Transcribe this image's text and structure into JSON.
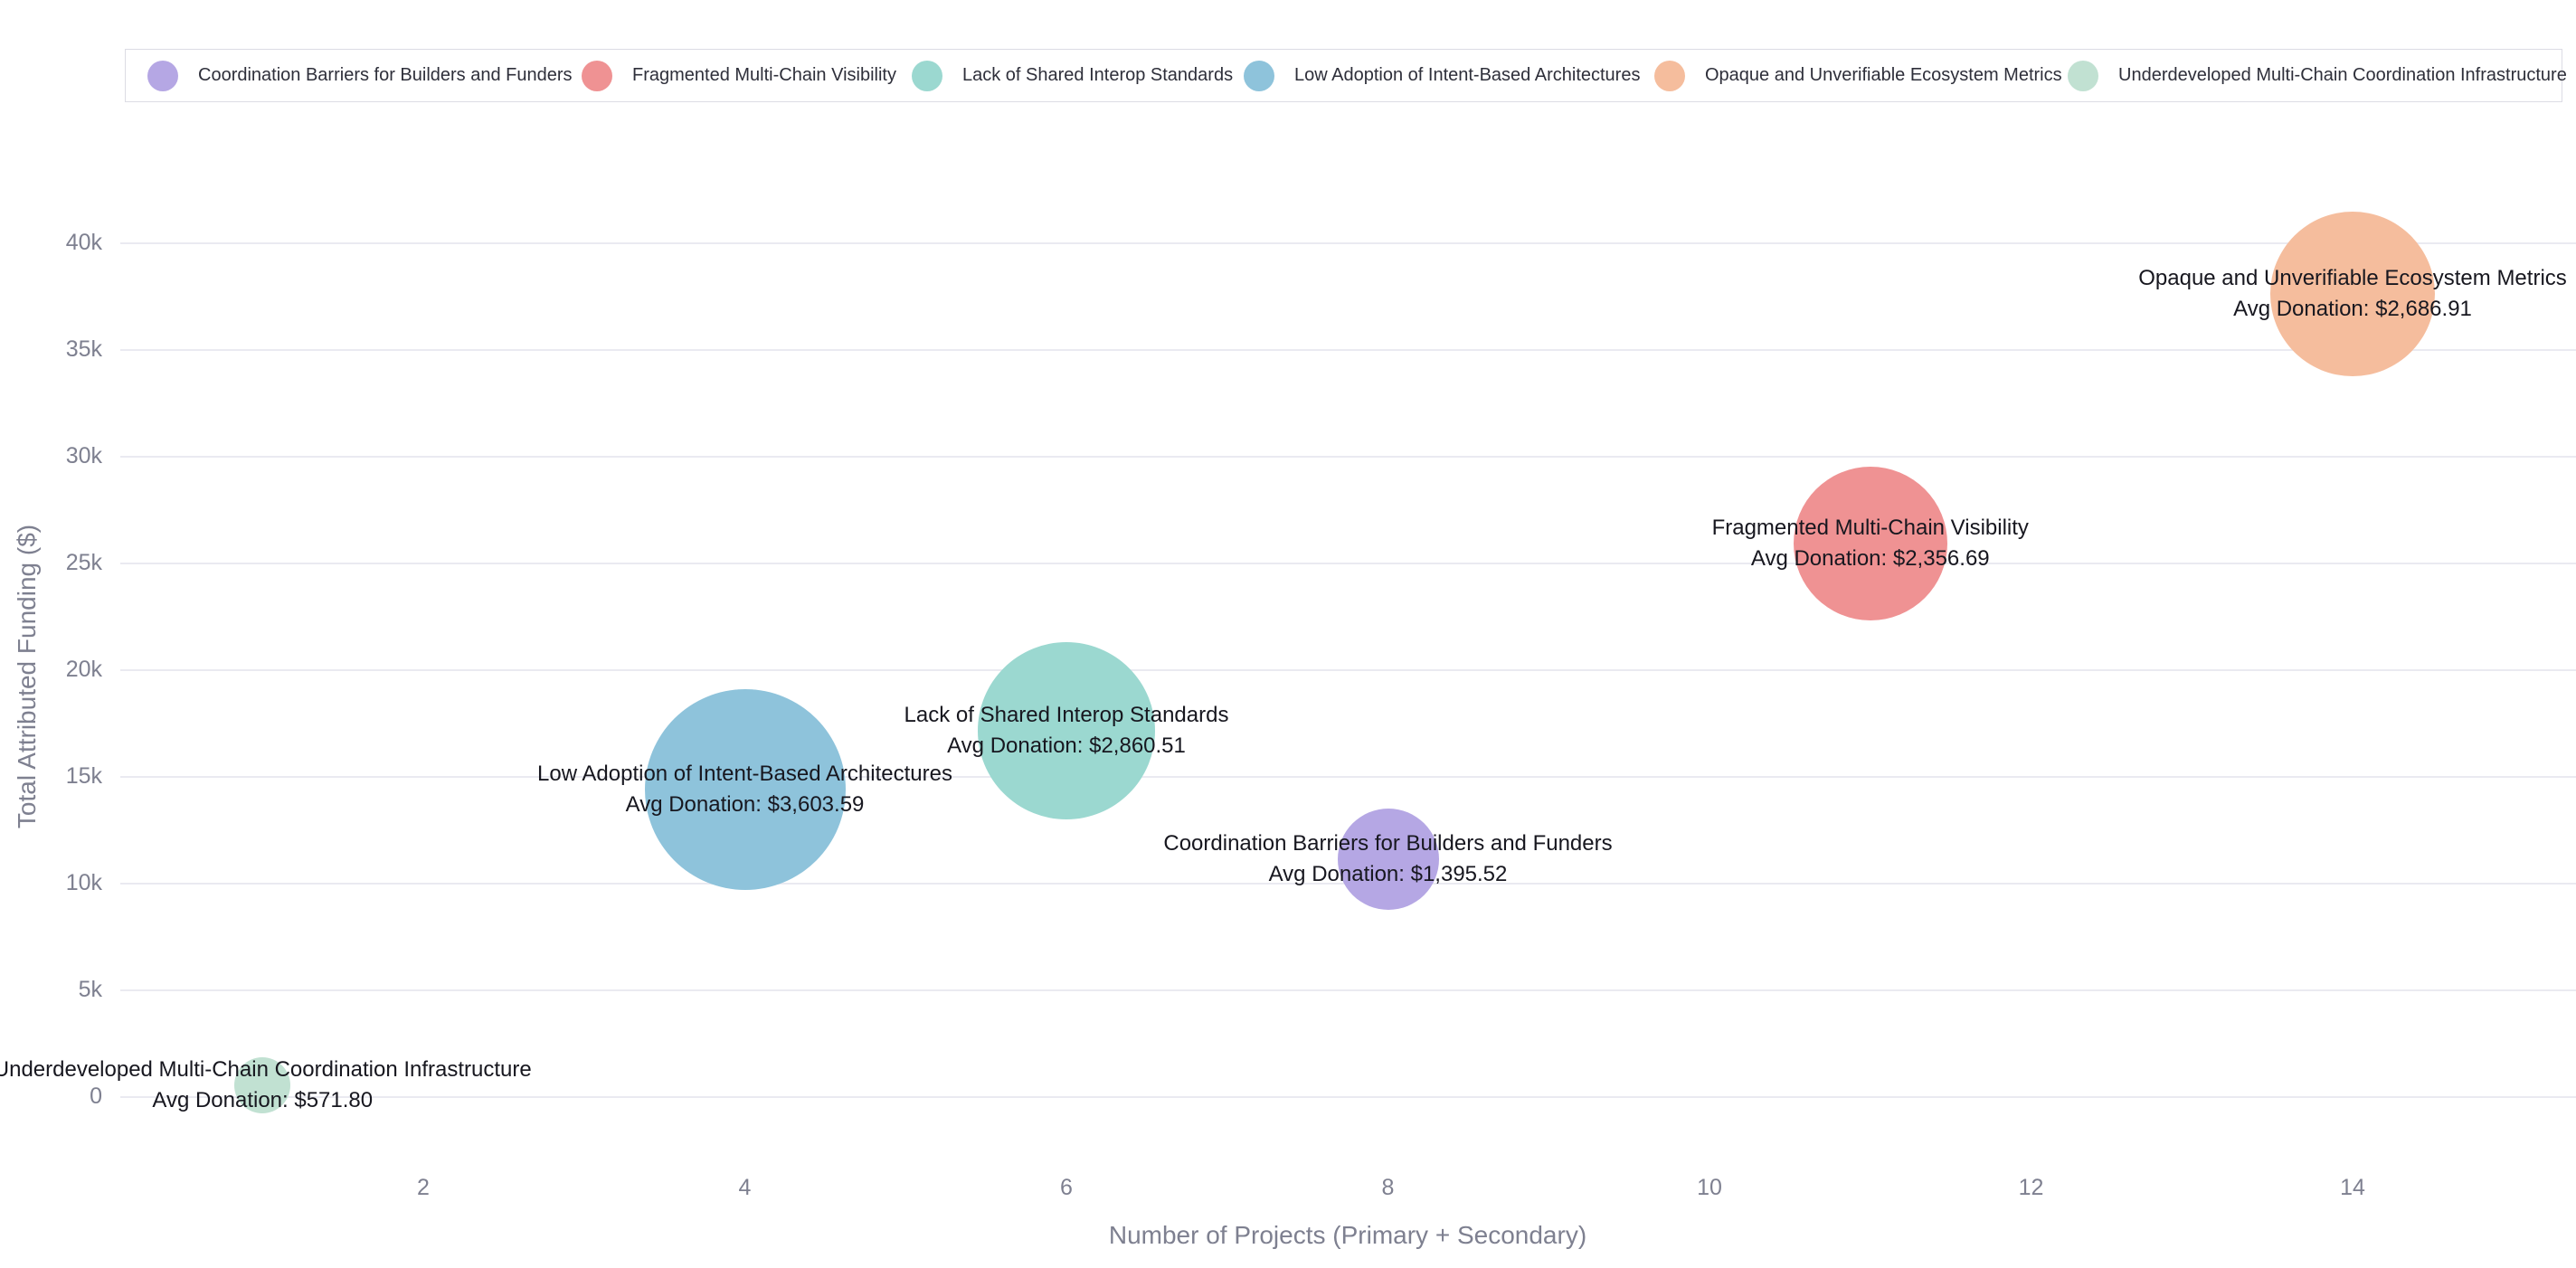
{
  "chart_data": {
    "type": "scatter",
    "variant": "bubble",
    "title": "",
    "xlabel": "Number of Projects (Primary + Secondary)",
    "ylabel": "Total Attributed Funding ($)",
    "x_ticks": [
      2,
      4,
      6,
      8,
      10,
      12,
      14
    ],
    "y_ticks": [
      {
        "label": "0",
        "value": 0
      },
      {
        "label": "5k",
        "value": 5000
      },
      {
        "label": "10k",
        "value": 10000
      },
      {
        "label": "15k",
        "value": 15000
      },
      {
        "label": "20k",
        "value": 20000
      },
      {
        "label": "25k",
        "value": 25000
      },
      {
        "label": "30k",
        "value": 30000
      },
      {
        "label": "35k",
        "value": 35000
      },
      {
        "label": "40k",
        "value": 40000
      }
    ],
    "xlim": [
      0.15,
      15.4
    ],
    "ylim": [
      -900,
      42600
    ],
    "grid": "horizontal-only",
    "legend_position": "top",
    "background_color": "#ffffff",
    "gridline_color": "#eaeaf1",
    "axis_text_color": "#7e8090",
    "bubble_label_color": "#17171f",
    "series": [
      {
        "name": "Coordination Barriers for Builders and Funders",
        "x": 8,
        "y": 11164.16,
        "avg_donation": 1395.52,
        "avg_donation_label": "Avg Donation: $1,395.52",
        "color": "#b5a7e4",
        "radius_px": 56
      },
      {
        "name": "Fragmented Multi-Chain Visibility",
        "x": 11,
        "y": 25923.59,
        "avg_donation": 2356.69,
        "avg_donation_label": "Avg Donation: $2,356.69",
        "color": "#ef9293",
        "radius_px": 85
      },
      {
        "name": "Lack of Shared Interop Standards",
        "x": 6,
        "y": 17163.06,
        "avg_donation": 2860.51,
        "avg_donation_label": "Avg Donation: $2,860.51",
        "color": "#9bd8d0",
        "radius_px": 98
      },
      {
        "name": "Low Adoption of Intent-Based Architectures",
        "x": 4,
        "y": 14414.36,
        "avg_donation": 3603.59,
        "avg_donation_label": "Avg Donation: $3,603.59",
        "color": "#8ec3db",
        "radius_px": 111
      },
      {
        "name": "Opaque and Unverifiable Ecosystem Metrics",
        "x": 14,
        "y": 37616.74,
        "avg_donation": 2686.91,
        "avg_donation_label": "Avg Donation: $2,686.91",
        "color": "#f5bd9d",
        "radius_px": 91
      },
      {
        "name": "Underdeveloped Multi-Chain Coordination Infrastructure",
        "x": 1,
        "y": 571.8,
        "avg_donation": 571.8,
        "avg_donation_label": "Avg Donation: $571.80",
        "color": "#c1e1d2",
        "radius_px": 31
      }
    ]
  }
}
